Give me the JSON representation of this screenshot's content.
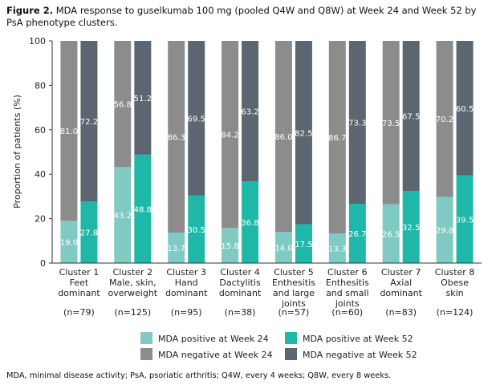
{
  "caption": {
    "label": "Figure 2.",
    "text": "MDA response to guselkumab 100 mg (pooled Q4W and Q8W) at Week 24 and Week 52 by PsA phenotype clusters."
  },
  "footnote": "MDA, minimal disease activity; PsA, psoriatic arthritis; Q4W, every 4 weeks; Q8W, every 8 weeks.",
  "colors": {
    "pos24": "#7fcac2",
    "pos52": "#1fb8a8",
    "neg24": "#8c8c8c",
    "neg52": "#5b6670"
  },
  "chart_data": {
    "type": "bar",
    "stacked": true,
    "title": "",
    "xlabel": "",
    "ylabel": "Proportion of patients (%)",
    "ylim": [
      0,
      100
    ],
    "yticks": [
      0,
      20,
      40,
      60,
      80,
      100
    ],
    "grid": false,
    "legend_position": "bottom",
    "categories": [
      {
        "lines": [
          "Cluster 1",
          "Feet",
          "dominant"
        ],
        "n": "(n=79)"
      },
      {
        "lines": [
          "Cluster 2",
          "Male, skin,",
          "overweight"
        ],
        "n": "(n=125)"
      },
      {
        "lines": [
          "Cluster 3",
          "Hand",
          "dominant"
        ],
        "n": "(n=95)"
      },
      {
        "lines": [
          "Cluster 4",
          "Dactylitis",
          "dominant"
        ],
        "n": "(n=38)"
      },
      {
        "lines": [
          "Cluster 5",
          "Enthesitis",
          "and large",
          "joints"
        ],
        "n": "(n=57)"
      },
      {
        "lines": [
          "Cluster 6",
          "Enthesitis",
          "and small",
          "joints"
        ],
        "n": "(n=60)"
      },
      {
        "lines": [
          "Cluster 7",
          "Axial",
          "dominant"
        ],
        "n": "(n=83)"
      },
      {
        "lines": [
          "Cluster 8",
          "Obese",
          "skin"
        ],
        "n": "(n=124)"
      }
    ],
    "series": [
      {
        "name": "MDA positive at Week 24",
        "week": 24,
        "kind": "pos",
        "values": [
          "19.0",
          "43.2",
          "13.7",
          "15.8",
          "14.0",
          "13.3",
          "26.5",
          "29.8"
        ]
      },
      {
        "name": "MDA negative at Week 24",
        "week": 24,
        "kind": "neg",
        "values": [
          "81.0",
          "56.8",
          "86.3",
          "84.2",
          "86.0",
          "86.7",
          "73.5",
          "70.2"
        ]
      },
      {
        "name": "MDA positive at Week 52",
        "week": 52,
        "kind": "pos",
        "values": [
          "27.8",
          "48.8",
          "30.5",
          "36.8",
          "17.5",
          "26.7",
          "32.5",
          "39.5"
        ]
      },
      {
        "name": "MDA negative at Week 52",
        "week": 52,
        "kind": "neg",
        "values": [
          "72.2",
          "51.2",
          "69.5",
          "63.2",
          "82.5",
          "73.3",
          "67.5",
          "60.5"
        ]
      }
    ],
    "legend": [
      {
        "label": "MDA positive at Week 24",
        "color_key": "pos24"
      },
      {
        "label": "MDA positive at Week 52",
        "color_key": "pos52"
      },
      {
        "label": "MDA negative at Week 24",
        "color_key": "neg24"
      },
      {
        "label": "MDA negative at Week 52",
        "color_key": "neg52"
      }
    ]
  }
}
